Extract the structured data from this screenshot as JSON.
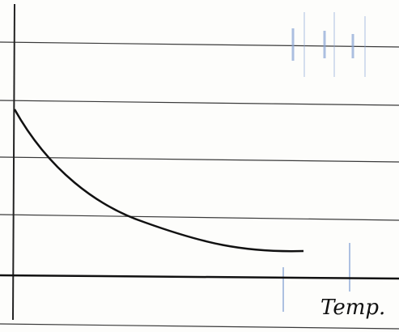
{
  "diagram": {
    "x_label": "Temp."
  }
}
